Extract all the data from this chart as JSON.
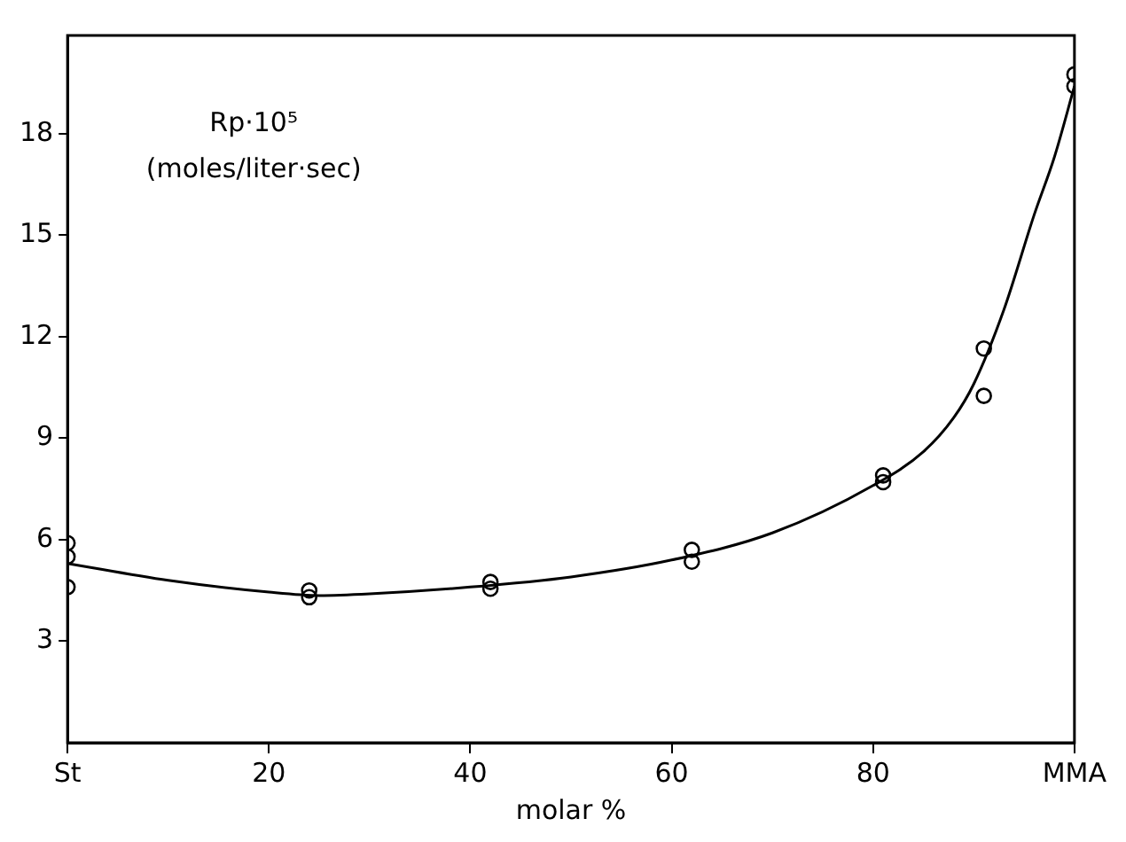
{
  "chart_data": {
    "type": "scatter",
    "xlabel": "molar %",
    "annotations": [
      "Rp·10⁵",
      "(moles/liter·sec)"
    ],
    "xlim": [
      0,
      100
    ],
    "ylim": [
      0,
      20.9
    ],
    "xticks": [
      {
        "value": 0,
        "label": "St"
      },
      20,
      40,
      60,
      80,
      {
        "value": 100,
        "label": "MMA"
      }
    ],
    "yticks": [
      3,
      6,
      9,
      12,
      15,
      18
    ],
    "grid": false,
    "legend": false,
    "series": [
      {
        "color": "#000000",
        "marker": "circle",
        "x": [
          0,
          0,
          0,
          24,
          24,
          42,
          42,
          62,
          62,
          81,
          81,
          91,
          91,
          100,
          100
        ],
        "values": [
          5.9,
          5.5,
          4.6,
          4.5,
          4.3,
          4.75,
          4.55,
          5.7,
          5.35,
          7.9,
          7.7,
          11.65,
          10.25,
          19.75,
          19.4
        ]
      },
      {
        "type": "line",
        "color": "#000000",
        "marker": "none",
        "x": [
          0,
          10,
          20,
          25,
          30,
          40,
          50,
          60,
          70,
          80,
          85,
          88,
          90,
          93,
          96,
          98,
          100
        ],
        "values": [
          5.3,
          4.8,
          4.45,
          4.35,
          4.4,
          4.6,
          4.9,
          5.4,
          6.2,
          7.6,
          8.6,
          9.6,
          10.6,
          12.8,
          15.6,
          17.3,
          19.4
        ]
      }
    ]
  }
}
